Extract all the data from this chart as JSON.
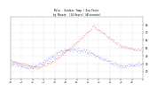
{
  "title_line1": "Milw.  Outdoor Temp / Dew Point",
  "title_line2": "by Minute  (24 Hours) (Alternate)",
  "temp_color": "#cc0000",
  "dew_color": "#0000cc",
  "background_color": "#ffffff",
  "plot_bg_color": "#ffffff",
  "grid_color": "#aaaaaa",
  "text_color": "#000000",
  "title_color": "#000000",
  "ylim": [
    10,
    90
  ],
  "ytick_values": [
    20,
    30,
    40,
    50,
    60,
    70,
    80
  ],
  "n_minutes": 1440,
  "seed": 42
}
